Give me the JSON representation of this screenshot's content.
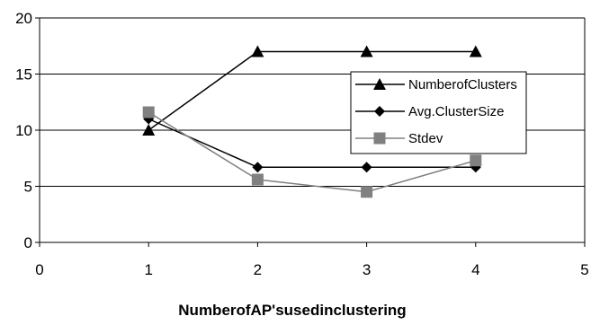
{
  "chart_data": {
    "type": "line",
    "title": "",
    "xlabel": "NumberofAP'susedinclustering",
    "ylabel": "",
    "xlim": [
      0,
      5
    ],
    "ylim": [
      0,
      20
    ],
    "x_ticks": [
      0,
      1,
      2,
      3,
      4,
      5
    ],
    "y_ticks": [
      0,
      5,
      10,
      15,
      20
    ],
    "grid": "horizontal",
    "legend_position": "right",
    "series": [
      {
        "name": "NumberofClusters",
        "marker": "triangle",
        "color": "#000000",
        "x": [
          1,
          2,
          3,
          4
        ],
        "y": [
          10,
          17,
          17,
          17
        ]
      },
      {
        "name": "Avg.ClusterSize",
        "marker": "diamond",
        "color": "#000000",
        "x": [
          1,
          2,
          3,
          4
        ],
        "y": [
          11,
          6.7,
          6.7,
          6.7
        ]
      },
      {
        "name": "Stdev",
        "marker": "square",
        "color": "#808080",
        "x": [
          1,
          2,
          3,
          4
        ],
        "y": [
          11.6,
          5.6,
          4.5,
          7.3
        ]
      }
    ]
  }
}
